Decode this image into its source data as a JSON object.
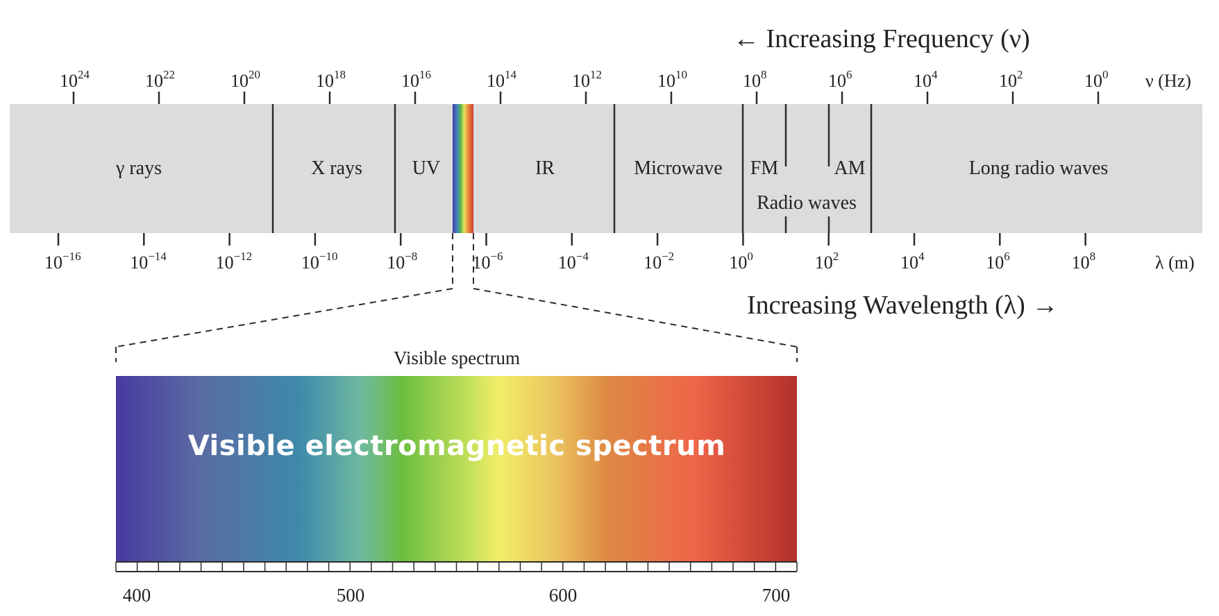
{
  "frequency_axis": {
    "arrow_title": "← Increasing Frequency (ν)",
    "unit_label": "ν (Hz)",
    "tick_exponents": [
      "24",
      "22",
      "20",
      "18",
      "16",
      "14",
      "12",
      "10",
      "8",
      "6",
      "4",
      "2",
      "0"
    ]
  },
  "wavelength_axis": {
    "arrow_title": "Increasing Wavelength (λ) →",
    "unit_label": "λ (m)",
    "tick_exponents": [
      "−16",
      "−14",
      "−12",
      "−10",
      "−8",
      "−6",
      "−4",
      "−2",
      "0",
      "2",
      "4",
      "6",
      "8"
    ]
  },
  "tick_base": "10",
  "bands": {
    "gamma": "γ rays",
    "xray": "X rays",
    "uv": "UV",
    "ir": "IR",
    "microwave": "Microwave",
    "fm": "FM",
    "am": "AM",
    "long_radio": "Long radio waves",
    "radio": "Radio waves"
  },
  "visible": {
    "label": "Visible spectrum",
    "overlay_title": "Visible electromagnetic spectrum",
    "tick_labels": [
      "400",
      "500",
      "600",
      "700"
    ]
  },
  "colors": {
    "band_fill": "#dcdcdc",
    "line": "#2b2b2b",
    "spectrum_stops": [
      "#4a3a9e",
      "#5577a3",
      "#3d8caa",
      "#69b942",
      "#eeee66",
      "#e0a050",
      "#ee6645",
      "#b0302a"
    ]
  }
}
